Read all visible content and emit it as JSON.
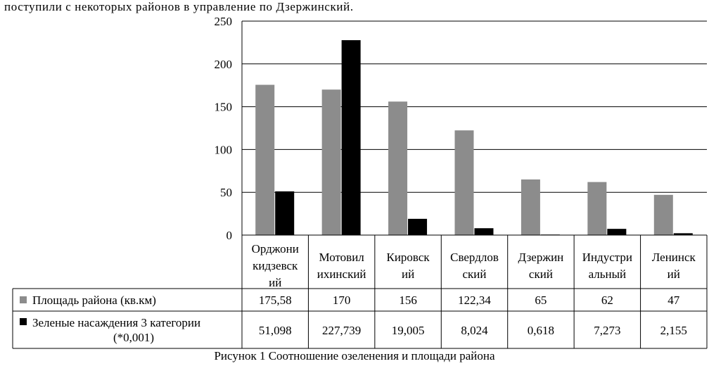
{
  "page_text": {
    "top_line": "поступили с некоторых районов в управление по     Дзержинский.",
    "caption": "Рисунок 1 Соотношение озеленения и площади района"
  },
  "colors": {
    "series_area": "#8c8c8c",
    "series_green": "#000000",
    "grid": "#000000"
  },
  "chart_data": {
    "type": "bar",
    "categories": [
      [
        "Орджони",
        "кидзевск",
        "ий"
      ],
      [
        "Мотовил",
        "ихинский"
      ],
      [
        "Кировск",
        "ий"
      ],
      [
        "Свердлов",
        "ский"
      ],
      [
        "Дзержин",
        "ский"
      ],
      [
        "Индустри",
        "альный"
      ],
      [
        "Ленинск",
        "ий"
      ]
    ],
    "series": [
      {
        "name": [
          "Площадь района (кв.км)"
        ],
        "values": [
          175.58,
          170,
          156,
          122.34,
          65,
          62,
          47
        ],
        "labels": [
          "175,58",
          "170",
          "156",
          "122,34",
          "65",
          "62",
          "47"
        ]
      },
      {
        "name": [
          "Зеленые насаждения 3 категории",
          "(*0,001)"
        ],
        "values": [
          51.098,
          227.739,
          19.005,
          8.024,
          0.618,
          7.273,
          2.155
        ],
        "labels": [
          "51,098",
          "227,739",
          "19,005",
          "8,024",
          "0,618",
          "7,273",
          "2,155"
        ]
      }
    ],
    "yticks": [
      "0",
      "50",
      "100",
      "150",
      "200",
      "250"
    ],
    "ylim": [
      0,
      250
    ],
    "grid": true,
    "legend": "data-table"
  }
}
